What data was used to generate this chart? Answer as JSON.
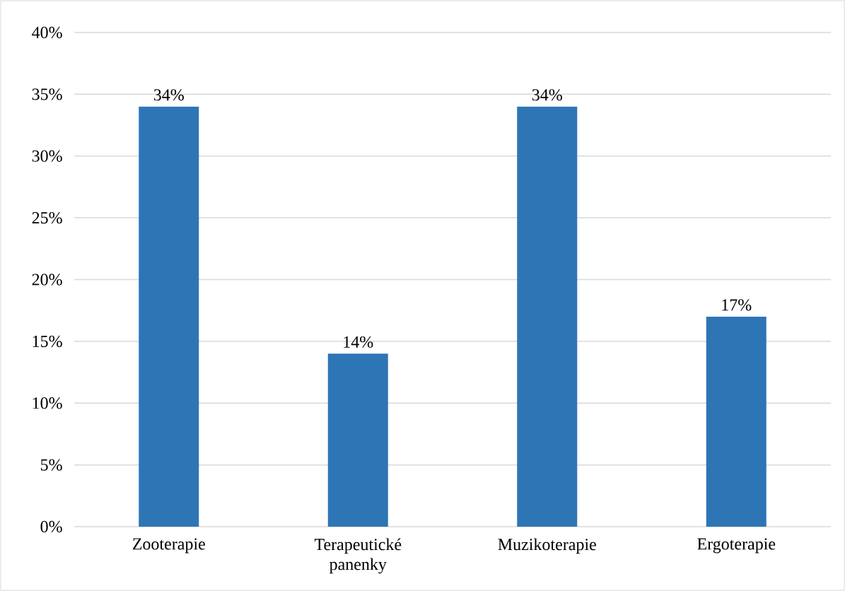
{
  "chart_data": {
    "type": "bar",
    "categories": [
      "Zooterapie",
      "Terapeutické panenky",
      "Muzikoterapie",
      "Ergoterapie"
    ],
    "values": [
      34,
      14,
      34,
      17
    ],
    "value_labels": [
      "34%",
      "14%",
      "34%",
      "17%"
    ],
    "color": "#2e75b6",
    "ylim": [
      0,
      40
    ],
    "yticks": [
      {
        "value": 0,
        "label": "0%"
      },
      {
        "value": 5,
        "label": "5%"
      },
      {
        "value": 10,
        "label": "10%"
      },
      {
        "value": 15,
        "label": "15%"
      },
      {
        "value": 20,
        "label": "20%"
      },
      {
        "value": 25,
        "label": "25%"
      },
      {
        "value": 30,
        "label": "30%"
      },
      {
        "value": 35,
        "label": "35%"
      },
      {
        "value": 40,
        "label": "40%"
      }
    ],
    "grid": "y"
  }
}
